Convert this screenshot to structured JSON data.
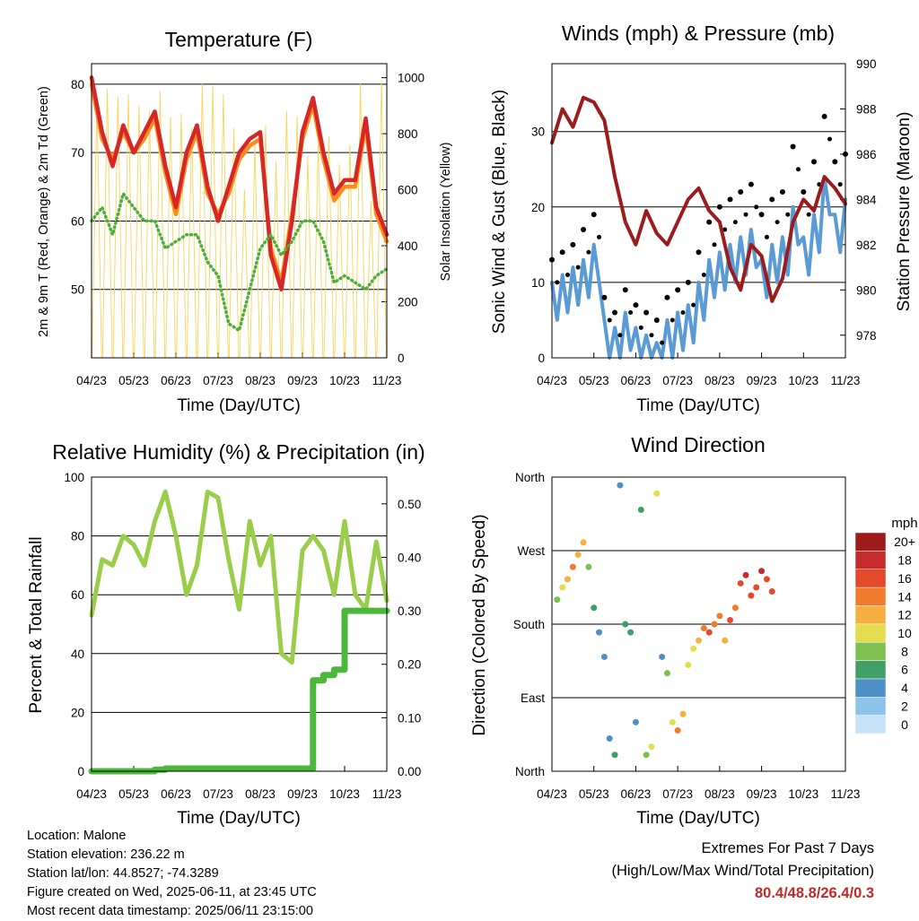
{
  "panels": {
    "temperature": {
      "title": "Temperature (F)",
      "ylabel_left": "2m & 9m T (Red, Orange) & 2m Td (Green)",
      "ylabel_right": "Solar Insolation (Yellow)",
      "xlabel": "Time (Day/UTC)"
    },
    "winds": {
      "title": "Winds (mph) & Pressure (mb)",
      "ylabel_left": "Sonic Wind & Gust (Blue, Black)",
      "ylabel_right": "Station Pressure (Maroon)",
      "xlabel": "Time (Day/UTC)"
    },
    "humidity": {
      "title": "Relative Humidity (%) & Precipitation (in)",
      "ylabel_left": "Percent & Total Rainfall",
      "xlabel": "Time (Day/UTC)"
    },
    "direction": {
      "title": "Wind Direction",
      "ylabel_left": "Direction (Colored By Speed)",
      "xlabel": "Time (Day/UTC)",
      "colorbar_title": "mph"
    }
  },
  "info": {
    "location": "Location: Malone",
    "elevation": "Station elevation: 236.22 m",
    "latlon": "Station lat/lon: 44.8527; -74.3289",
    "created": "Figure created on Wed, 2025-06-11, at 23:45 UTC",
    "recent": "Most recent data timestamp: 2025/06/11 23:15:00"
  },
  "extremes": {
    "line1": "Extremes For Past 7 Days",
    "line2": "(High/Low/Max Wind/Total Precipitation)",
    "values": "80.4/48.8/26.4/0.3"
  },
  "colors": {
    "temp_2m": "#d62728",
    "temp_9m": "#ff8c1a",
    "dewpoint": "#4caf3a",
    "solar": "#f5d55a",
    "wind": "#5b9bd5",
    "gust": "#000000",
    "pressure": "#9b1c1c",
    "rh": "#9acd4a",
    "precip": "#4cb83a"
  },
  "chart_data": [
    {
      "type": "line",
      "title": "Temperature (F)",
      "x_ticks": [
        "04/23",
        "05/23",
        "06/23",
        "07/23",
        "08/23",
        "09/23",
        "10/23",
        "11/23"
      ],
      "x": [
        0,
        1,
        2,
        3,
        4,
        5,
        6,
        7,
        8,
        9,
        10,
        11,
        12,
        13,
        14,
        15,
        16,
        17,
        18,
        19,
        20,
        21,
        22,
        23,
        24,
        25,
        26,
        27,
        28
      ],
      "ylim": [
        40,
        83
      ],
      "yticks": [
        50,
        60,
        70,
        80
      ],
      "y2lim": [
        0,
        1050
      ],
      "y2ticks": [
        0,
        200,
        400,
        600,
        800,
        1000
      ],
      "series": [
        {
          "name": "2m T",
          "axis": "left",
          "values": [
            81,
            73,
            68,
            74,
            70,
            73,
            76,
            68,
            62,
            70,
            74,
            65,
            60,
            65,
            70,
            72,
            73,
            55,
            50,
            60,
            73,
            78,
            70,
            64,
            66,
            66,
            75,
            62,
            58
          ]
        },
        {
          "name": "9m T",
          "axis": "left",
          "values": [
            80,
            72,
            69,
            73,
            70,
            72,
            75,
            67,
            61,
            69,
            73,
            64,
            61,
            64,
            69,
            71,
            72,
            56,
            51,
            61,
            72,
            77,
            69,
            63,
            65,
            65,
            74,
            61,
            57
          ]
        },
        {
          "name": "2m Td",
          "axis": "left",
          "values": [
            60,
            62,
            58,
            64,
            62,
            60,
            60,
            56,
            57,
            58,
            58,
            54,
            52,
            45,
            44,
            50,
            56,
            58,
            55,
            57,
            60,
            60,
            57,
            51,
            52,
            51,
            50,
            52,
            53
          ]
        }
      ]
    },
    {
      "type": "line",
      "title": "Winds (mph) & Pressure (mb)",
      "x_ticks": [
        "04/23",
        "05/23",
        "06/23",
        "07/23",
        "08/23",
        "09/23",
        "10/23",
        "11/23"
      ],
      "x": [
        0,
        1,
        2,
        3,
        4,
        5,
        6,
        7,
        8,
        9,
        10,
        11,
        12,
        13,
        14,
        15,
        16,
        17,
        18,
        19,
        20,
        21,
        22,
        23,
        24,
        25,
        26,
        27,
        28
      ],
      "ylim": [
        0,
        39
      ],
      "yticks": [
        0,
        10,
        20,
        30
      ],
      "y2lim": [
        977,
        990
      ],
      "y2ticks": [
        978,
        980,
        982,
        984,
        986,
        988,
        990
      ],
      "series": [
        {
          "name": "Sonic Wind",
          "axis": "left",
          "values": [
            10,
            11,
            12,
            13,
            15,
            5,
            4,
            6,
            4,
            3,
            2,
            5,
            6,
            7,
            10,
            13,
            14,
            15,
            16,
            17,
            13,
            15,
            16,
            20,
            16,
            19,
            24,
            19,
            21
          ]
        },
        {
          "name": "Gust",
          "axis": "left",
          "values": [
            13,
            14,
            15,
            17,
            19,
            8,
            6,
            9,
            7,
            6,
            5,
            8,
            9,
            10,
            14,
            18,
            20,
            21,
            22,
            23,
            19,
            21,
            22,
            28,
            22,
            26,
            32,
            26,
            27
          ]
        },
        {
          "name": "Station Pressure",
          "axis": "right",
          "values": [
            986.5,
            988,
            987.2,
            988.5,
            988.3,
            987.5,
            985,
            983,
            982,
            983.5,
            982.5,
            982,
            983,
            984,
            984.5,
            983.5,
            983,
            981,
            980,
            982,
            981.5,
            979.5,
            980.5,
            983,
            984,
            983.5,
            985,
            984.5,
            983.8
          ]
        }
      ]
    },
    {
      "type": "line",
      "title": "Relative Humidity (%) & Precipitation (in)",
      "x_ticks": [
        "04/23",
        "05/23",
        "06/23",
        "07/23",
        "08/23",
        "09/23",
        "10/23",
        "11/23"
      ],
      "x": [
        0,
        1,
        2,
        3,
        4,
        5,
        6,
        7,
        8,
        9,
        10,
        11,
        12,
        13,
        14,
        15,
        16,
        17,
        18,
        19,
        20,
        21,
        22,
        23,
        24,
        25,
        26,
        27,
        28
      ],
      "ylim": [
        0,
        100
      ],
      "yticks": [
        0,
        20,
        40,
        60,
        80,
        100
      ],
      "y2lim": [
        0,
        0.55
      ],
      "y2ticks": [
        0.0,
        0.1,
        0.2,
        0.3,
        0.4,
        0.5
      ],
      "series": [
        {
          "name": "RH",
          "axis": "left",
          "values": [
            53,
            72,
            70,
            80,
            77,
            70,
            85,
            95,
            80,
            60,
            70,
            95,
            93,
            72,
            55,
            85,
            70,
            80,
            40,
            37,
            75,
            80,
            75,
            60,
            85,
            60,
            55,
            78,
            58
          ]
        },
        {
          "name": "Total Precip",
          "axis": "right",
          "values": [
            0,
            0,
            0,
            0,
            0,
            0,
            0.003,
            0.005,
            0.005,
            0.005,
            0.005,
            0.005,
            0.005,
            0.005,
            0.005,
            0.005,
            0.005,
            0.005,
            0.005,
            0.005,
            0.005,
            0.17,
            0.18,
            0.19,
            0.3,
            0.3,
            0.3,
            0.3,
            0.3
          ]
        }
      ]
    },
    {
      "type": "scatter",
      "title": "Wind Direction",
      "x_ticks": [
        "04/23",
        "05/23",
        "06/23",
        "07/23",
        "08/23",
        "09/23",
        "10/23",
        "11/23"
      ],
      "y_ticks": [
        "North",
        "East",
        "South",
        "West",
        "North"
      ],
      "ylim": [
        0,
        360
      ],
      "colorbar_labels": [
        "0",
        "2",
        "4",
        "6",
        "8",
        "10",
        "12",
        "14",
        "16",
        "18",
        "20+"
      ],
      "colorbar_colors": [
        "#c6e3f7",
        "#8ec3ea",
        "#4f8fc7",
        "#3f9f66",
        "#7fbf4f",
        "#e3dc4f",
        "#f5b041",
        "#f07b2c",
        "#e24a2b",
        "#c62a2a",
        "#9e1b1b"
      ],
      "points": [
        {
          "x": 0.5,
          "y": 210,
          "speed": 8
        },
        {
          "x": 1,
          "y": 225,
          "speed": 9
        },
        {
          "x": 1.5,
          "y": 235,
          "speed": 11
        },
        {
          "x": 2,
          "y": 250,
          "speed": 13
        },
        {
          "x": 2.5,
          "y": 265,
          "speed": 12
        },
        {
          "x": 3,
          "y": 280,
          "speed": 11
        },
        {
          "x": 3.5,
          "y": 250,
          "speed": 8
        },
        {
          "x": 4,
          "y": 200,
          "speed": 6
        },
        {
          "x": 4.5,
          "y": 170,
          "speed": 4
        },
        {
          "x": 5,
          "y": 140,
          "speed": 3
        },
        {
          "x": 5.5,
          "y": 40,
          "speed": 4
        },
        {
          "x": 6,
          "y": 20,
          "speed": 6
        },
        {
          "x": 6.5,
          "y": 350,
          "speed": 4
        },
        {
          "x": 7,
          "y": 180,
          "speed": 5
        },
        {
          "x": 7.5,
          "y": 170,
          "speed": 6
        },
        {
          "x": 8,
          "y": 60,
          "speed": 4
        },
        {
          "x": 8.5,
          "y": 320,
          "speed": 6
        },
        {
          "x": 9,
          "y": 20,
          "speed": 8
        },
        {
          "x": 9.5,
          "y": 30,
          "speed": 10
        },
        {
          "x": 10,
          "y": 340,
          "speed": 9
        },
        {
          "x": 10.5,
          "y": 140,
          "speed": 4
        },
        {
          "x": 11,
          "y": 120,
          "speed": 7
        },
        {
          "x": 11.5,
          "y": 60,
          "speed": 9
        },
        {
          "x": 12,
          "y": 50,
          "speed": 13
        },
        {
          "x": 12.5,
          "y": 70,
          "speed": 12
        },
        {
          "x": 13,
          "y": 130,
          "speed": 9
        },
        {
          "x": 13.5,
          "y": 150,
          "speed": 10
        },
        {
          "x": 14,
          "y": 160,
          "speed": 12
        },
        {
          "x": 14.5,
          "y": 175,
          "speed": 14
        },
        {
          "x": 15,
          "y": 170,
          "speed": 16
        },
        {
          "x": 15.5,
          "y": 180,
          "speed": 14
        },
        {
          "x": 16,
          "y": 190,
          "speed": 13
        },
        {
          "x": 16.5,
          "y": 160,
          "speed": 12
        },
        {
          "x": 17,
          "y": 185,
          "speed": 15
        },
        {
          "x": 17.5,
          "y": 200,
          "speed": 14
        },
        {
          "x": 18,
          "y": 230,
          "speed": 16
        },
        {
          "x": 18.5,
          "y": 240,
          "speed": 18
        },
        {
          "x": 19,
          "y": 215,
          "speed": 16
        },
        {
          "x": 19.5,
          "y": 225,
          "speed": 15
        },
        {
          "x": 20,
          "y": 245,
          "speed": 18
        },
        {
          "x": 20.5,
          "y": 235,
          "speed": 16
        },
        {
          "x": 21,
          "y": 220,
          "speed": 15
        }
      ]
    }
  ]
}
